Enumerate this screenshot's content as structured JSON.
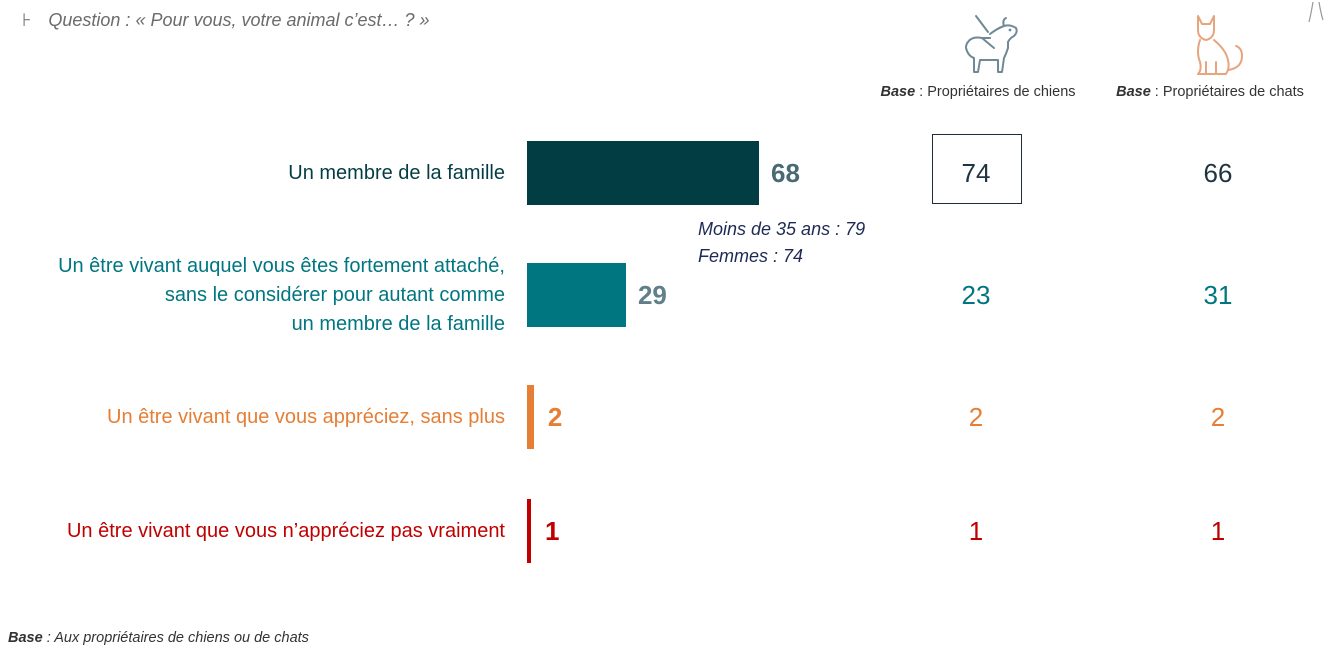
{
  "question": {
    "marker": "⊦",
    "text": "Question : « Pour vous, votre animal c’est… ? »"
  },
  "columns": [
    {
      "base_label": "Base",
      "base_text": " : Propriétaires de chiens",
      "icon": "dog-icon",
      "color": "#6f8996"
    },
    {
      "base_label": "Base",
      "base_text": " : Propriétaires de chats",
      "icon": "cat-icon",
      "color": "#e7a57e"
    }
  ],
  "chart_data": {
    "type": "bar",
    "orientation": "horizontal",
    "categories": [
      "Un membre de la famille",
      "Un être vivant auquel vous êtes fortement attaché, sans le considérer pour autant comme un membre de la famille",
      "Un être vivant que vous appréciez, sans plus",
      "Un être vivant que vous n’appréciez pas vraiment"
    ],
    "category_lines": [
      [
        "Un membre de la famille"
      ],
      [
        "Un être vivant auquel vous êtes fortement attaché,",
        "sans le considérer pour autant comme",
        "un membre de la famille"
      ],
      [
        "Un être vivant que vous appréciez, sans plus"
      ],
      [
        "Un être vivant que vous n’appréciez pas vraiment"
      ]
    ],
    "values": [
      68,
      29,
      2,
      1
    ],
    "xlim": [
      0,
      100
    ],
    "colors": [
      "#033d44",
      "#007680",
      "#e57f36",
      "#c00000"
    ],
    "value_colors": [
      "#496a75",
      "#5f7f8a",
      "#e57f36",
      "#c00000"
    ],
    "series_columns": [
      {
        "name": "Propriétaires de chiens",
        "values": [
          74,
          23,
          2,
          1
        ]
      },
      {
        "name": "Propriétaires de chats",
        "values": [
          66,
          31,
          2,
          1
        ]
      }
    ],
    "annotation": [
      "Moins de 35 ans : 79",
      "Femmes : 74"
    ]
  },
  "footer": {
    "base_label": "Base",
    "base_text": " : Aux propriétaires de chiens ou de chats"
  }
}
